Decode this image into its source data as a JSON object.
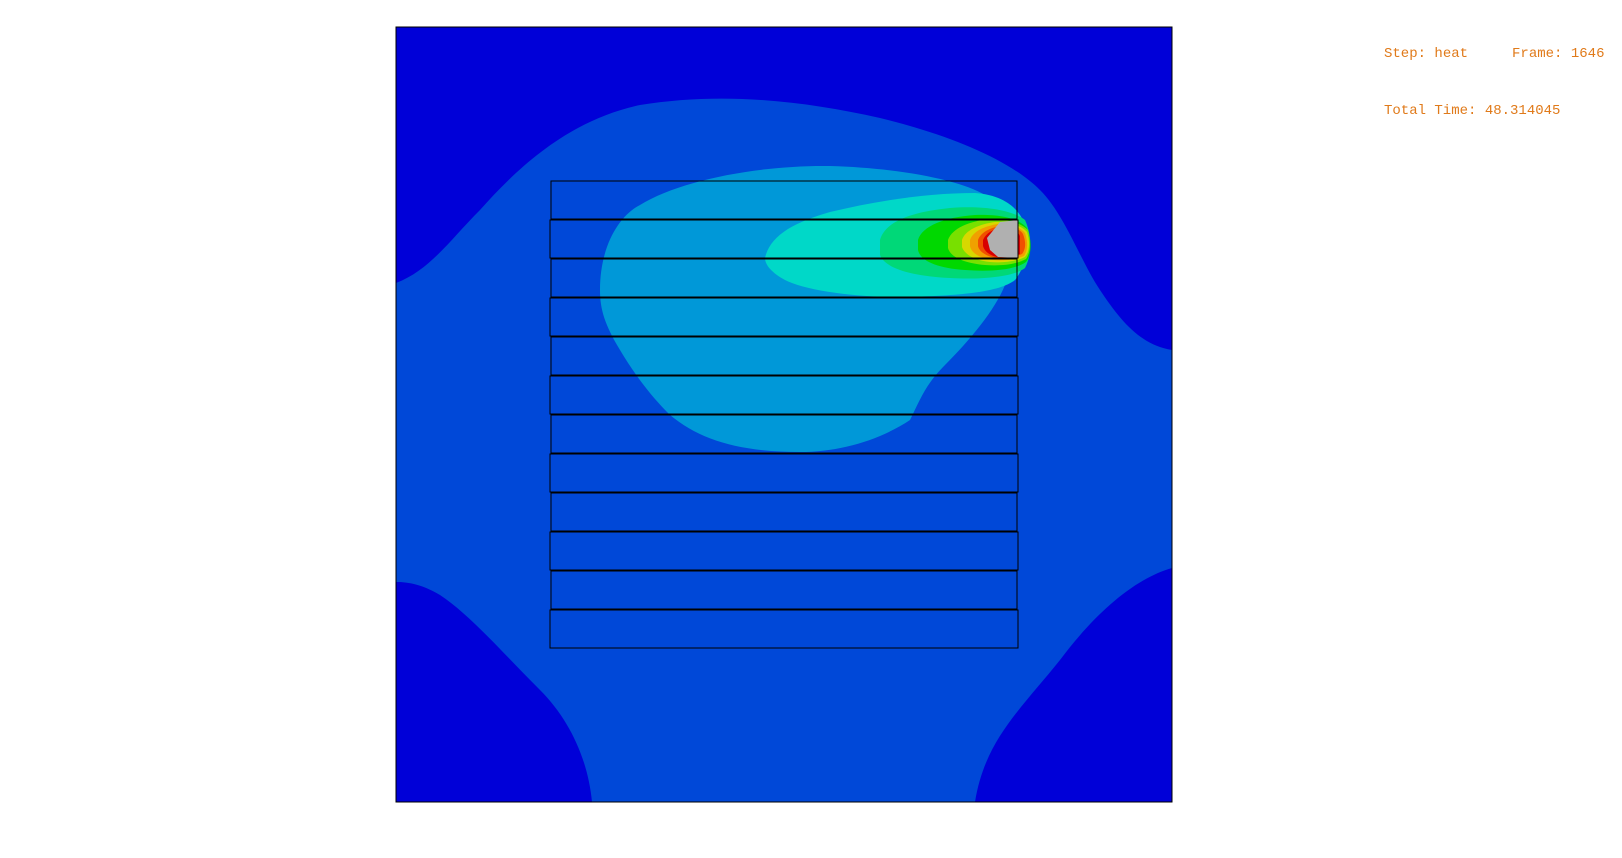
{
  "viewport": {
    "background": "#ffffff",
    "model_type": "FE contour plot, heat transfer"
  },
  "status": {
    "step_label": "Step:",
    "step_value": "heat",
    "frame_label": "Frame:",
    "frame_value": "1646",
    "time_label": "Total Time:",
    "time_value": "48.314045",
    "text_color": "#e07a1a"
  },
  "contour": {
    "colors": {
      "level_0": "#0000d8",
      "level_1": "#0048d8",
      "level_2": "#0098d8",
      "level_3": "#00d8c8",
      "level_4": "#00d878",
      "level_5": "#00d800",
      "level_6": "#78e000",
      "level_7": "#d8d800",
      "level_8": "#f0a000",
      "level_9": "#f05000",
      "level_10": "#d80000",
      "exceeded": "#b0b0b0"
    },
    "layer_count": 12,
    "layer_outline": "#000000"
  }
}
